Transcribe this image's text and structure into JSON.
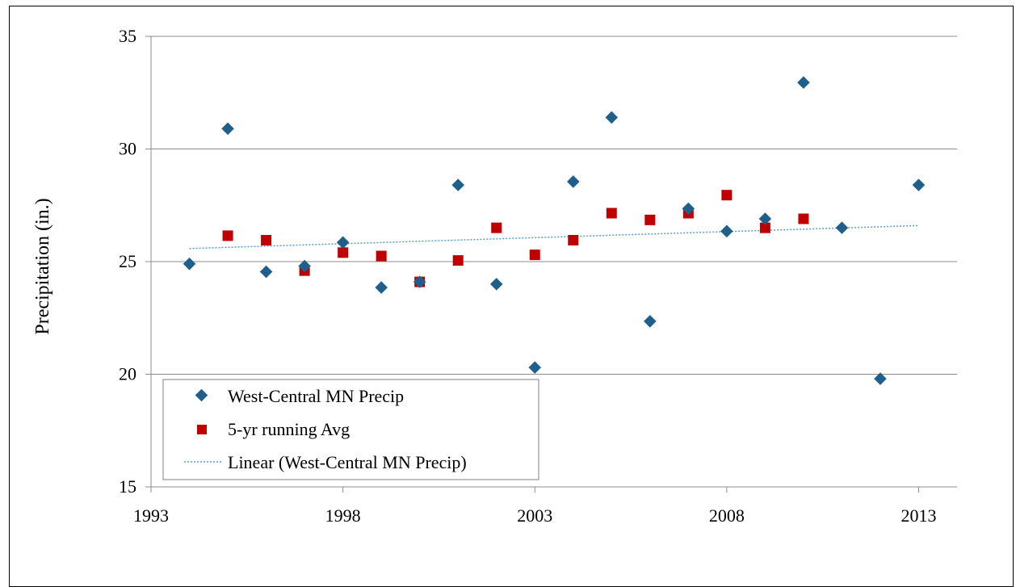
{
  "chart_data": {
    "type": "scatter",
    "title": "",
    "xlabel": "",
    "ylabel": "Precipitation (in.)",
    "xlim": [
      1993,
      2014
    ],
    "ylim": [
      15,
      35
    ],
    "x_ticks": [
      1993,
      1998,
      2003,
      2008,
      2013
    ],
    "y_ticks": [
      15,
      20,
      25,
      30,
      35
    ],
    "grid": "horizontal",
    "legend_position": "lower-left",
    "series": [
      {
        "name": "West-Central MN Precip",
        "marker": "diamond",
        "color": "#1f5f8b",
        "x": [
          1994,
          1995,
          1996,
          1997,
          1998,
          1999,
          2000,
          2001,
          2002,
          2003,
          2004,
          2005,
          2006,
          2007,
          2008,
          2009,
          2010,
          2011,
          2012,
          2013
        ],
        "values": [
          24.9,
          30.9,
          24.55,
          24.8,
          25.85,
          23.85,
          24.1,
          28.4,
          24.0,
          20.3,
          28.55,
          31.4,
          22.35,
          27.35,
          26.35,
          26.9,
          32.95,
          26.5,
          19.8,
          28.4
        ]
      },
      {
        "name": "5-yr running Avg",
        "marker": "square",
        "color": "#c00000",
        "x": [
          1995,
          1996,
          1997,
          1998,
          1999,
          2000,
          2001,
          2002,
          2003,
          2004,
          2005,
          2006,
          2007,
          2008,
          2009,
          2010
        ],
        "values": [
          26.15,
          25.95,
          24.6,
          25.4,
          25.25,
          24.1,
          25.05,
          26.5,
          25.3,
          25.95,
          27.15,
          26.85,
          27.15,
          27.95,
          26.5,
          26.9
        ]
      },
      {
        "name": "Linear (West-Central MN Precip)",
        "style": "dotted-line",
        "color": "#5b9bd5",
        "x": [
          1994,
          2013
        ],
        "values": [
          25.58,
          26.6
        ]
      }
    ]
  }
}
